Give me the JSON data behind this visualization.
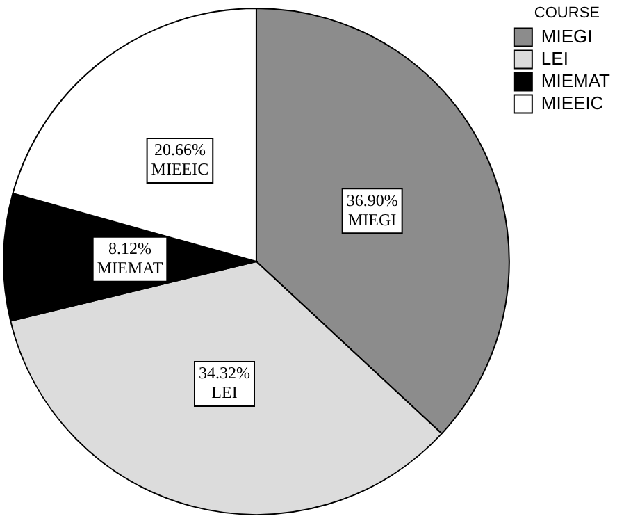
{
  "chart_data": {
    "type": "pie",
    "legend_title": "COURSE",
    "legend": "top right",
    "categories": [
      "MIEGI",
      "LEI",
      "MIEMAT",
      "MIEEIC"
    ],
    "values": [
      36.9,
      34.32,
      8.12,
      20.66
    ],
    "value_labels": [
      "36.90%",
      "34.32%",
      "8.12%",
      "20.66%"
    ],
    "colors": [
      "#8c8c8c",
      "#dcdcdc",
      "#000000",
      "#ffffff"
    ]
  }
}
